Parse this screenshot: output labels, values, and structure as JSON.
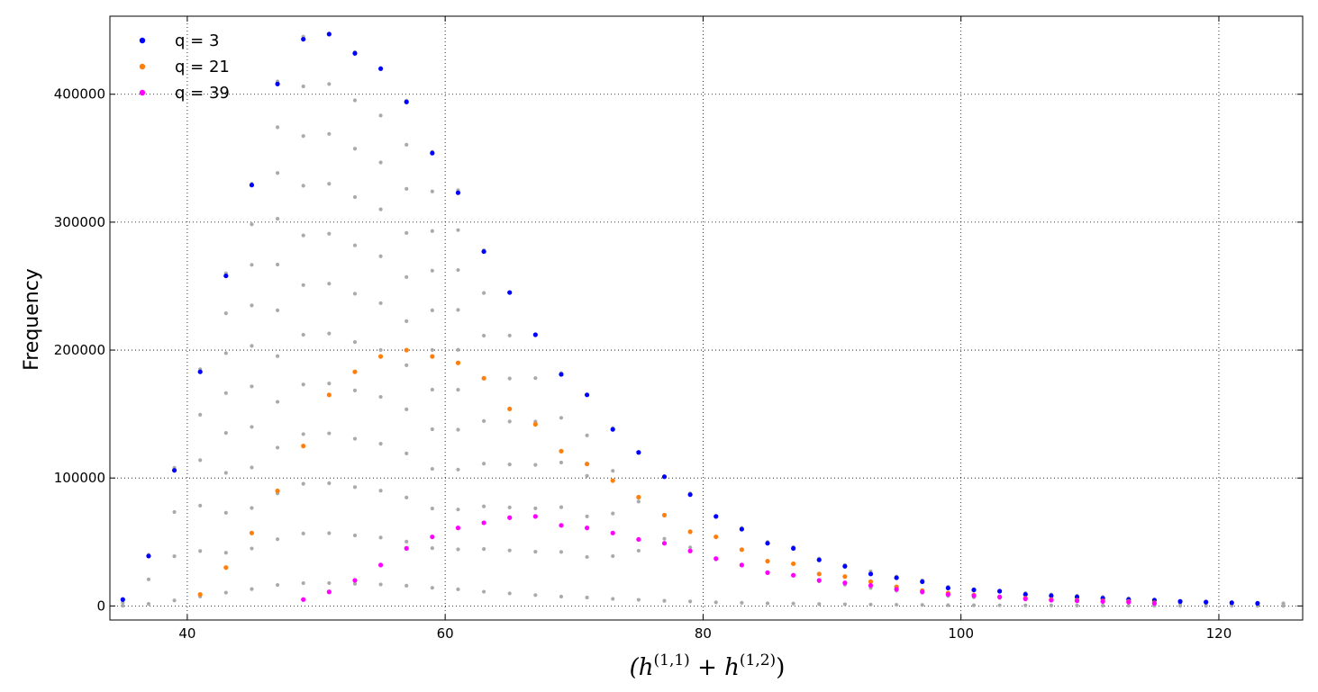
{
  "chart_data": {
    "type": "scatter",
    "title": "",
    "xlabel_parts": {
      "open": "(h",
      "sup1": "(1,1)",
      "plus": " + h",
      "sup2": "(1,2)",
      "close": ")"
    },
    "ylabel": "Frequency",
    "xlim": [
      34,
      126.5
    ],
    "ylim": [
      -11000,
      461000
    ],
    "xticks": [
      40,
      60,
      80,
      100,
      120
    ],
    "yticks": [
      0,
      100000,
      200000,
      300000,
      400000
    ],
    "grid": true,
    "legend_position": "top-left",
    "series": [
      {
        "name": "q = 3",
        "color": "#0000ff",
        "x": [
          35,
          37,
          39,
          41,
          43,
          45,
          47,
          49,
          51,
          53,
          55,
          57,
          59,
          61,
          63,
          65,
          67,
          69,
          71,
          73,
          75,
          77,
          79,
          81,
          83,
          85,
          87,
          89,
          91,
          93,
          95,
          97,
          99,
          101,
          103,
          105,
          107,
          109,
          111,
          113,
          115,
          117,
          119,
          121,
          123
        ],
        "y": [
          5000,
          39000,
          106000,
          183000,
          258000,
          329000,
          408000,
          443000,
          447000,
          432000,
          420000,
          394000,
          354000,
          323000,
          277000,
          245000,
          212000,
          181000,
          165000,
          138000,
          120000,
          101000,
          87000,
          70000,
          60000,
          49000,
          45000,
          36000,
          31000,
          25000,
          22000,
          19000,
          14000,
          12500,
          11500,
          9000,
          8000,
          7000,
          6000,
          5000,
          4500,
          3500,
          3000,
          2500,
          2000
        ]
      },
      {
        "name": "q = 21",
        "color": "#ff7f0e",
        "x": [
          41,
          43,
          45,
          47,
          49,
          51,
          53,
          55,
          57,
          59,
          61,
          63,
          65,
          67,
          69,
          71,
          73,
          75,
          77,
          79,
          81,
          83,
          85,
          87,
          89,
          91,
          93,
          95,
          97,
          99,
          101,
          103,
          105,
          107,
          109,
          111,
          113,
          115
        ],
        "y": [
          9000,
          30000,
          57000,
          90000,
          125000,
          165000,
          183000,
          195000,
          200000,
          195000,
          190000,
          178000,
          154000,
          142000,
          121000,
          111000,
          98000,
          85000,
          71000,
          58000,
          54000,
          44000,
          35000,
          33000,
          25000,
          23000,
          19000,
          15000,
          12000,
          10000,
          8500,
          7000,
          6000,
          5000,
          4500,
          4000,
          3500,
          2500
        ]
      },
      {
        "name": "q = 39",
        "color": "#ff00ff",
        "x": [
          49,
          51,
          53,
          55,
          57,
          59,
          61,
          63,
          65,
          67,
          69,
          71,
          73,
          75,
          77,
          79,
          81,
          83,
          85,
          87,
          89,
          91,
          93,
          95,
          97,
          99,
          101,
          103,
          105,
          107,
          109,
          111,
          113,
          115
        ],
        "y": [
          5000,
          11000,
          20000,
          32000,
          45000,
          54000,
          61000,
          65000,
          69000,
          70000,
          63000,
          61000,
          57000,
          52000,
          49000,
          43000,
          37000,
          32000,
          26000,
          24000,
          20000,
          18000,
          16000,
          13000,
          11000,
          9000,
          8000,
          7000,
          5500,
          4500,
          4000,
          3500,
          3000,
          2000
        ]
      },
      {
        "name": "",
        "color": "#aaaaaa",
        "x": [
          35,
          37,
          39,
          41,
          43,
          45,
          47,
          49,
          51,
          53,
          55,
          57,
          59,
          61,
          63,
          65,
          67,
          69,
          71,
          73,
          75,
          77,
          79,
          81,
          83,
          85,
          87,
          89,
          91,
          93,
          95,
          97,
          99,
          101,
          103,
          105,
          107,
          109,
          111,
          113,
          115,
          117,
          119,
          121,
          123,
          125
        ],
        "y": [
          5000,
          40000,
          108000,
          185000,
          260000,
          330000,
          410000,
          445000,
          447000,
          433000,
          420000,
          395000,
          355000,
          325000,
          278000,
          245000,
          212000,
          182000,
          165000,
          139000,
          120000,
          101000,
          88000,
          70000,
          61000,
          50000,
          46000,
          37000,
          32000,
          27000,
          23000,
          20000,
          15000,
          13000,
          12000,
          10000,
          9000,
          8000,
          7000,
          6000,
          5000,
          4000,
          3500,
          3000,
          2500,
          2000
        ]
      }
    ]
  }
}
